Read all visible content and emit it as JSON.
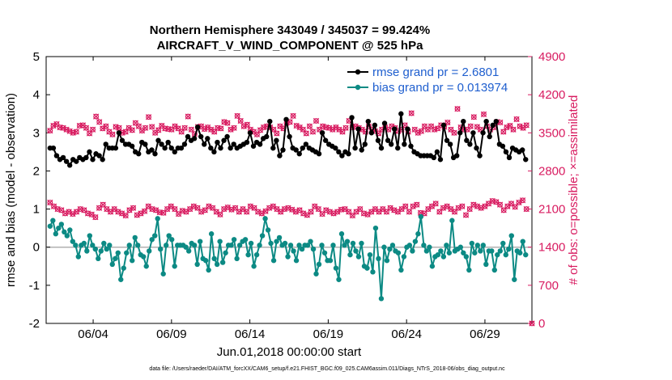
{
  "chart_data": {
    "type": "line",
    "title_line1": "Northern Hemisphere 343049 / 345037 = 99.424%",
    "title_line2": "AIRCRAFT_V_WIND_COMPONENT @ 525 hPa",
    "xlabel": "Jun.01,2018 00:00:00 start",
    "ylabel_left": "rmse and bias (model - observation)",
    "ylabel_right": "# of obs: o=possible; ×=assimilated",
    "footnote": "data file: /Users/raeder/DAI/ATM_forcXX/CAM6_setup/f.e21.FHIST_BGC.f09_025.CAM6assim.011/Diags_NTrS_2018-06/obs_diag_output.nc",
    "xlim": [
      1,
      32
    ],
    "ylim_left": [
      -2,
      5
    ],
    "ylim_right": [
      0,
      4900
    ],
    "x_ticks": [
      {
        "value": 4,
        "label": "06/04"
      },
      {
        "value": 9,
        "label": "06/09"
      },
      {
        "value": 14,
        "label": "06/14"
      },
      {
        "value": 19,
        "label": "06/19"
      },
      {
        "value": 24,
        "label": "06/24"
      },
      {
        "value": 29,
        "label": "06/29"
      }
    ],
    "y_ticks_left": [
      {
        "value": -2,
        "label": "-2"
      },
      {
        "value": -1,
        "label": "-1"
      },
      {
        "value": 0,
        "label": "0"
      },
      {
        "value": 1,
        "label": "1"
      },
      {
        "value": 2,
        "label": "2"
      },
      {
        "value": 3,
        "label": "3"
      },
      {
        "value": 4,
        "label": "4"
      },
      {
        "value": 5,
        "label": "5"
      }
    ],
    "y_ticks_right": [
      {
        "value": 0,
        "label": "0"
      },
      {
        "value": 700,
        "label": "700"
      },
      {
        "value": 1400,
        "label": "1400"
      },
      {
        "value": 2100,
        "label": "2100"
      },
      {
        "value": 2800,
        "label": "2800"
      },
      {
        "value": 3500,
        "label": "3500"
      },
      {
        "value": 4200,
        "label": "4200"
      },
      {
        "value": 4900,
        "label": "4900"
      }
    ],
    "x_start": 1.25,
    "x_step": 0.25,
    "series": [
      {
        "name": "rmse grand pr = 2.6801",
        "color": "#000000",
        "axis": "left",
        "values": [
          2.6,
          2.6,
          2.4,
          2.3,
          2.35,
          2.25,
          2.15,
          2.3,
          2.25,
          2.35,
          2.3,
          2.35,
          2.5,
          2.3,
          2.45,
          2.4,
          2.3,
          2.7,
          2.6,
          2.6,
          2.6,
          3.0,
          2.8,
          2.7,
          2.7,
          2.65,
          2.5,
          2.45,
          2.75,
          2.7,
          2.5,
          2.55,
          2.45,
          2.8,
          2.7,
          2.6,
          2.75,
          2.6,
          2.5,
          2.6,
          2.6,
          2.7,
          2.9,
          2.8,
          2.85,
          3.15,
          2.9,
          2.7,
          2.85,
          2.6,
          2.5,
          2.75,
          2.6,
          2.8,
          2.9,
          2.6,
          2.7,
          2.6,
          2.65,
          2.7,
          2.75,
          3.0,
          2.65,
          2.75,
          2.7,
          2.85,
          2.9,
          3.3,
          2.6,
          2.8,
          2.4,
          2.55,
          3.35,
          2.9,
          2.6,
          2.55,
          2.45,
          2.6,
          2.7,
          2.6,
          2.55,
          2.5,
          2.45,
          3.0,
          2.8,
          2.7,
          2.65,
          2.6,
          2.5,
          2.4,
          2.5,
          2.45,
          3.4,
          2.6,
          3.1,
          2.55,
          2.7,
          3.3,
          3.0,
          3.2,
          2.8,
          2.6,
          3.25,
          2.8,
          2.7,
          3.1,
          2.6,
          3.5,
          2.7,
          3.1,
          2.65,
          2.5,
          2.45,
          2.4,
          2.4,
          2.4,
          2.4,
          2.35,
          2.5,
          2.3,
          3.2,
          2.8,
          2.7,
          2.35,
          2.4,
          3.0,
          3.3,
          2.8,
          2.7,
          3.0,
          2.6,
          2.4,
          3.0,
          3.3,
          2.9,
          3.2,
          3.3,
          2.7,
          2.65,
          2.5,
          2.35,
          2.6,
          2.55,
          2.5,
          2.55,
          2.3
        ]
      },
      {
        "name": "bias grand pr = 0.013974",
        "color": "#0c8a84",
        "axis": "left",
        "values": [
          0.55,
          0.7,
          0.35,
          0.5,
          0.6,
          0.4,
          0.3,
          0.45,
          0.15,
          0.05,
          -0.25,
          0.05,
          0.1,
          -0.1,
          0.3,
          0.05,
          -0.05,
          -0.3,
          -0.1,
          0.1,
          -0.05,
          0.05,
          -0.45,
          -0.3,
          -0.15,
          -0.85,
          -0.55,
          -0.15,
          0.05,
          -0.35,
          0.25,
          0.05,
          -0.2,
          -0.25,
          -0.5,
          -0.1,
          0.2,
          0.3,
          0.75,
          -0.05,
          -0.7,
          0.05,
          0.3,
          0.2,
          -0.5,
          0.05,
          0.05,
          0.05,
          0.0,
          -0.1,
          0.1,
          0.05,
          -0.45,
          0.15,
          -0.3,
          -0.35,
          -0.6,
          0.35,
          -0.3,
          -0.45,
          0.15,
          -0.4,
          -0.15,
          0.05,
          0.05,
          0.2,
          -0.3,
          0.05,
          0.15,
          0.2,
          -0.2,
          0.1,
          -0.5,
          -0.2,
          0.05,
          0.3,
          0.75,
          0.45,
          0.1,
          -0.35,
          0.15,
          0.25,
          0.05,
          0.1,
          -0.25,
          0.05,
          -0.1,
          -0.35,
          0.05,
          -0.05,
          0.05,
          0.05,
          0.15,
          -0.05,
          -0.7,
          -0.45,
          0.05,
          -0.15,
          -0.35,
          -0.35,
          0.05,
          -0.55,
          -0.85,
          0.35,
          0.05,
          0.15,
          -0.2,
          0.1,
          -0.1,
          -0.25,
          0.1,
          -0.5,
          -0.55,
          -0.2,
          -0.65,
          0.5,
          -0.3,
          -1.35,
          0.0,
          -0.35,
          -0.05,
          0.05,
          -0.1,
          -0.15,
          -0.6,
          -0.25,
          0.0,
          0.05,
          -0.1,
          0.15,
          0.35,
          0.8,
          0.05,
          -0.1,
          0.0,
          -0.5,
          -0.25,
          -0.2,
          -0.1,
          -0.25,
          0.05,
          -0.15,
          0.7,
          -0.1,
          -0.05,
          0.0,
          -0.15,
          -0.25,
          -0.6,
          0.1,
          -0.15,
          0.05,
          -0.1,
          0.05,
          -0.45,
          -0.1,
          -0.1,
          -0.6,
          -0.2,
          -0.1,
          0.1,
          -0.2,
          -0.05,
          0.3,
          -0.85,
          -0.1,
          -0.15,
          0.15,
          -0.2
        ]
      }
    ],
    "obs_count_series": [
      {
        "name": "possible (upper cycle)",
        "marker": "o",
        "color": "#d81b60",
        "axis": "right",
        "values": [
          3540,
          3630,
          3660,
          3600,
          3590,
          3560,
          3530,
          3500,
          3520,
          3630,
          3640,
          3590,
          3490,
          3560,
          3800,
          3700,
          3580,
          3620,
          3520,
          3470,
          3610,
          3590,
          3500,
          3520,
          3590,
          3550,
          3680,
          3620,
          3540,
          3590,
          3790,
          3610,
          3500,
          3550,
          3630,
          3580,
          3570,
          3560,
          3620,
          3580,
          3520,
          3590,
          3800,
          3560,
          3480,
          3610,
          3620,
          3570,
          3600,
          3560,
          3520,
          3590,
          3580,
          3700,
          3680,
          3560,
          3590,
          3810,
          3720,
          3620,
          3650,
          3560,
          3520,
          3470,
          3550,
          3600,
          3620,
          3600,
          3560,
          3490,
          3620,
          3580,
          3680,
          3700,
          3810,
          3630,
          3600,
          3560,
          3490,
          3620,
          3520,
          3720,
          3560,
          3620,
          3600,
          3590,
          3560,
          3600,
          3560,
          3520,
          3590,
          3720,
          3600,
          3620,
          3590,
          3560,
          3520,
          3620,
          3560,
          3530,
          3490,
          3560,
          3600,
          3560,
          3620,
          3590,
          3530,
          3560,
          3640,
          3520,
          3860,
          3560,
          3500,
          3530,
          3620,
          3560,
          3620,
          3560,
          3580,
          3640,
          3610,
          3690,
          3560,
          3500,
          3940,
          3600,
          3560,
          3560,
          3620,
          3790,
          3610,
          3560,
          3840,
          3620,
          3560,
          3600,
          3700,
          3690,
          3520,
          3600,
          3630,
          3560,
          3750,
          3620,
          3590,
          3640
        ]
      },
      {
        "name": "possible (lower cycle)",
        "marker": "o",
        "color": "#d81b60",
        "axis": "right",
        "values": [
          2220,
          2150,
          2100,
          2080,
          2020,
          2050,
          2010,
          2050,
          2100,
          2080,
          2020,
          2000,
          1950,
          2120,
          2180,
          2100,
          2050,
          2100,
          2050,
          2020,
          1980,
          2080,
          2120,
          1990,
          2020,
          2060,
          2150,
          2100,
          2080,
          2040,
          2030,
          2100,
          2150,
          2100,
          2010,
          2070,
          2050,
          2100,
          2150,
          2120,
          2050,
          2080,
          2150,
          2120,
          2050,
          2000,
          2100,
          2130,
          2090,
          2120,
          2050,
          2100,
          2050,
          2150,
          2120,
          2050,
          2020,
          2060,
          2120,
          2150,
          2100,
          2050,
          2100,
          2120,
          2090,
          2050,
          2080,
          2020,
          1990,
          2050,
          2150,
          2100,
          2010,
          2080,
          2050,
          2020,
          2050,
          2090,
          2100,
          2050,
          1980,
          2050,
          2100,
          2020,
          2000,
          2050,
          2100,
          2050,
          2100,
          2050,
          2120,
          2080,
          2050,
          2100,
          2150,
          2050,
          2150,
          2180,
          2030,
          2020,
          2100,
          2150,
          2200,
          2050,
          2120,
          2150,
          2100,
          2050,
          2120,
          2150,
          1990,
          2100,
          2180,
          2150,
          2120,
          2150,
          2200,
          2250,
          2230,
          2180,
          2080,
          2150,
          2200,
          2140,
          2220,
          2260,
          2100
        ]
      }
    ]
  },
  "legend": {
    "rmse_label": "rmse grand pr = 2.6801",
    "bias_label": "bias grand pr = 0.013974"
  }
}
